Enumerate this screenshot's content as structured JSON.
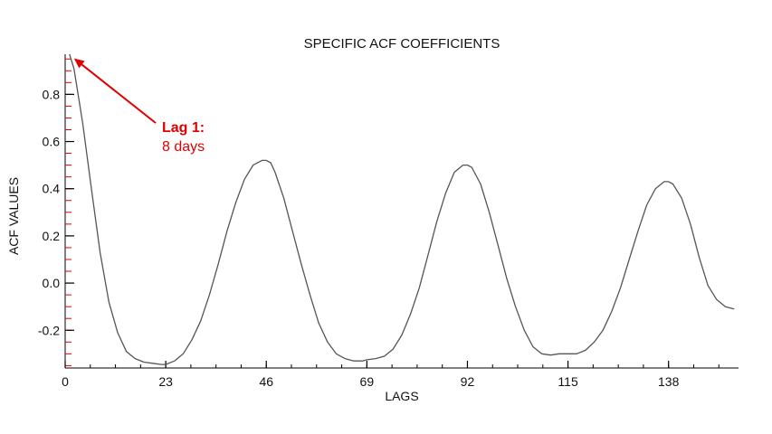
{
  "chart_data": {
    "type": "line",
    "title": "SPECIFIC ACF COEFFICIENTS",
    "xlabel": "LAGS",
    "ylabel": "ACF VALUES",
    "xlim": [
      0,
      154
    ],
    "ylim": [
      -0.36,
      0.97
    ],
    "x_ticks": [
      0,
      23,
      46,
      69,
      92,
      115,
      138
    ],
    "x_tick_labels": [
      "0",
      "23",
      "46",
      "69",
      "92",
      "115",
      "138"
    ],
    "y_ticks": [
      0.8,
      0.6,
      0.4,
      0.2,
      0.0,
      -0.2
    ],
    "y_tick_labels": [
      "0.8",
      "0.6",
      "0.4",
      "0.2",
      "0.0",
      "-0.2"
    ],
    "grid": false,
    "colors": {
      "line": "#555555",
      "axis": "#000000",
      "annotation": "#e00000",
      "minor_tick": "#e00000"
    },
    "series": [
      {
        "x": [
          1,
          2,
          4,
          6,
          8,
          10,
          12,
          14,
          16,
          18,
          20,
          22,
          23,
          25,
          27,
          29,
          31,
          33,
          35,
          37,
          39,
          41,
          43,
          45,
          46,
          47,
          48,
          50,
          52,
          54,
          56,
          58,
          60,
          62,
          64,
          66,
          68,
          69,
          71,
          73,
          75,
          77,
          79,
          81,
          83,
          85,
          87,
          89,
          91,
          92,
          93,
          95,
          97,
          99,
          101,
          103,
          105,
          107,
          109,
          111,
          113,
          115,
          117,
          119,
          121,
          123,
          125,
          127,
          129,
          131,
          133,
          135,
          137,
          138,
          139,
          141,
          143,
          145,
          147,
          149,
          151,
          153
        ],
        "values": [
          0.97,
          0.91,
          0.68,
          0.4,
          0.13,
          -0.08,
          -0.21,
          -0.29,
          -0.32,
          -0.335,
          -0.34,
          -0.345,
          -0.345,
          -0.33,
          -0.3,
          -0.24,
          -0.16,
          -0.05,
          0.08,
          0.22,
          0.34,
          0.44,
          0.5,
          0.52,
          0.52,
          0.51,
          0.47,
          0.36,
          0.22,
          0.08,
          -0.05,
          -0.17,
          -0.25,
          -0.3,
          -0.32,
          -0.33,
          -0.33,
          -0.325,
          -0.32,
          -0.31,
          -0.28,
          -0.22,
          -0.13,
          -0.02,
          0.12,
          0.26,
          0.38,
          0.47,
          0.5,
          0.5,
          0.49,
          0.42,
          0.3,
          0.16,
          0.02,
          -0.1,
          -0.2,
          -0.27,
          -0.3,
          -0.305,
          -0.3,
          -0.3,
          -0.3,
          -0.285,
          -0.25,
          -0.2,
          -0.12,
          -0.02,
          0.1,
          0.22,
          0.33,
          0.4,
          0.43,
          0.43,
          0.42,
          0.36,
          0.25,
          0.11,
          -0.01,
          -0.07,
          -0.1,
          -0.11
        ]
      }
    ],
    "annotation": {
      "bold_text": "Lag 1:",
      "text": "8 days",
      "arrow_points_to": {
        "x": 1,
        "y": 0.96
      }
    }
  }
}
